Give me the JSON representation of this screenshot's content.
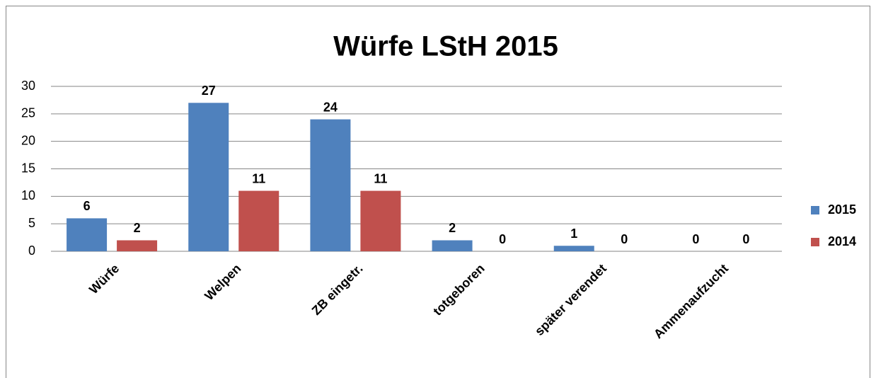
{
  "chart_data": {
    "type": "bar",
    "title": "Würfe LStH 2015",
    "categories": [
      "Würfe",
      "Welpen",
      "ZB eingetr.",
      "totgeboren",
      "später verendet",
      "Ammenaufzucht"
    ],
    "series": [
      {
        "name": "2015",
        "color": "#4f81bd",
        "values": [
          6,
          27,
          24,
          2,
          1,
          0
        ]
      },
      {
        "name": "2014",
        "color": "#c0504d",
        "values": [
          2,
          11,
          11,
          0,
          0,
          0
        ]
      }
    ],
    "ylim": [
      0,
      30
    ],
    "yticks": [
      0,
      5,
      10,
      15,
      20,
      25,
      30
    ],
    "grid": true,
    "legend": "right"
  }
}
